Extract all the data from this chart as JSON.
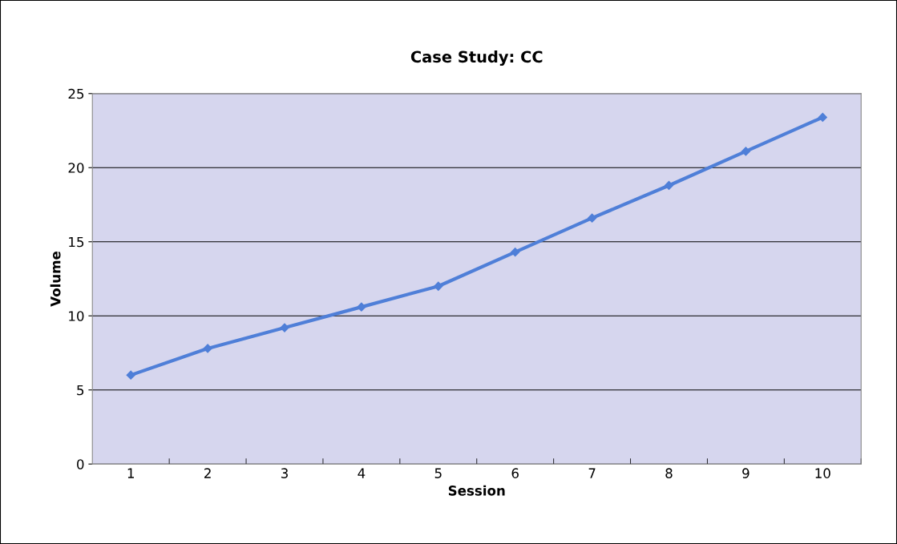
{
  "chart_data": {
    "type": "line",
    "title": "Case Study: CC",
    "xlabel": "Session",
    "ylabel": "Volume",
    "categories": [
      "1",
      "2",
      "3",
      "4",
      "5",
      "6",
      "7",
      "8",
      "9",
      "10"
    ],
    "series": [
      {
        "color": "#4f7fd8",
        "values": [
          6.0,
          7.8,
          9.2,
          10.6,
          12.0,
          14.3,
          16.6,
          18.8,
          21.1,
          23.4
        ]
      }
    ],
    "ylim": [
      0,
      25
    ],
    "yticks": [
      0,
      5,
      10,
      15,
      20,
      25
    ],
    "grid": "y",
    "marker": "diamond",
    "line_style": "solid"
  }
}
